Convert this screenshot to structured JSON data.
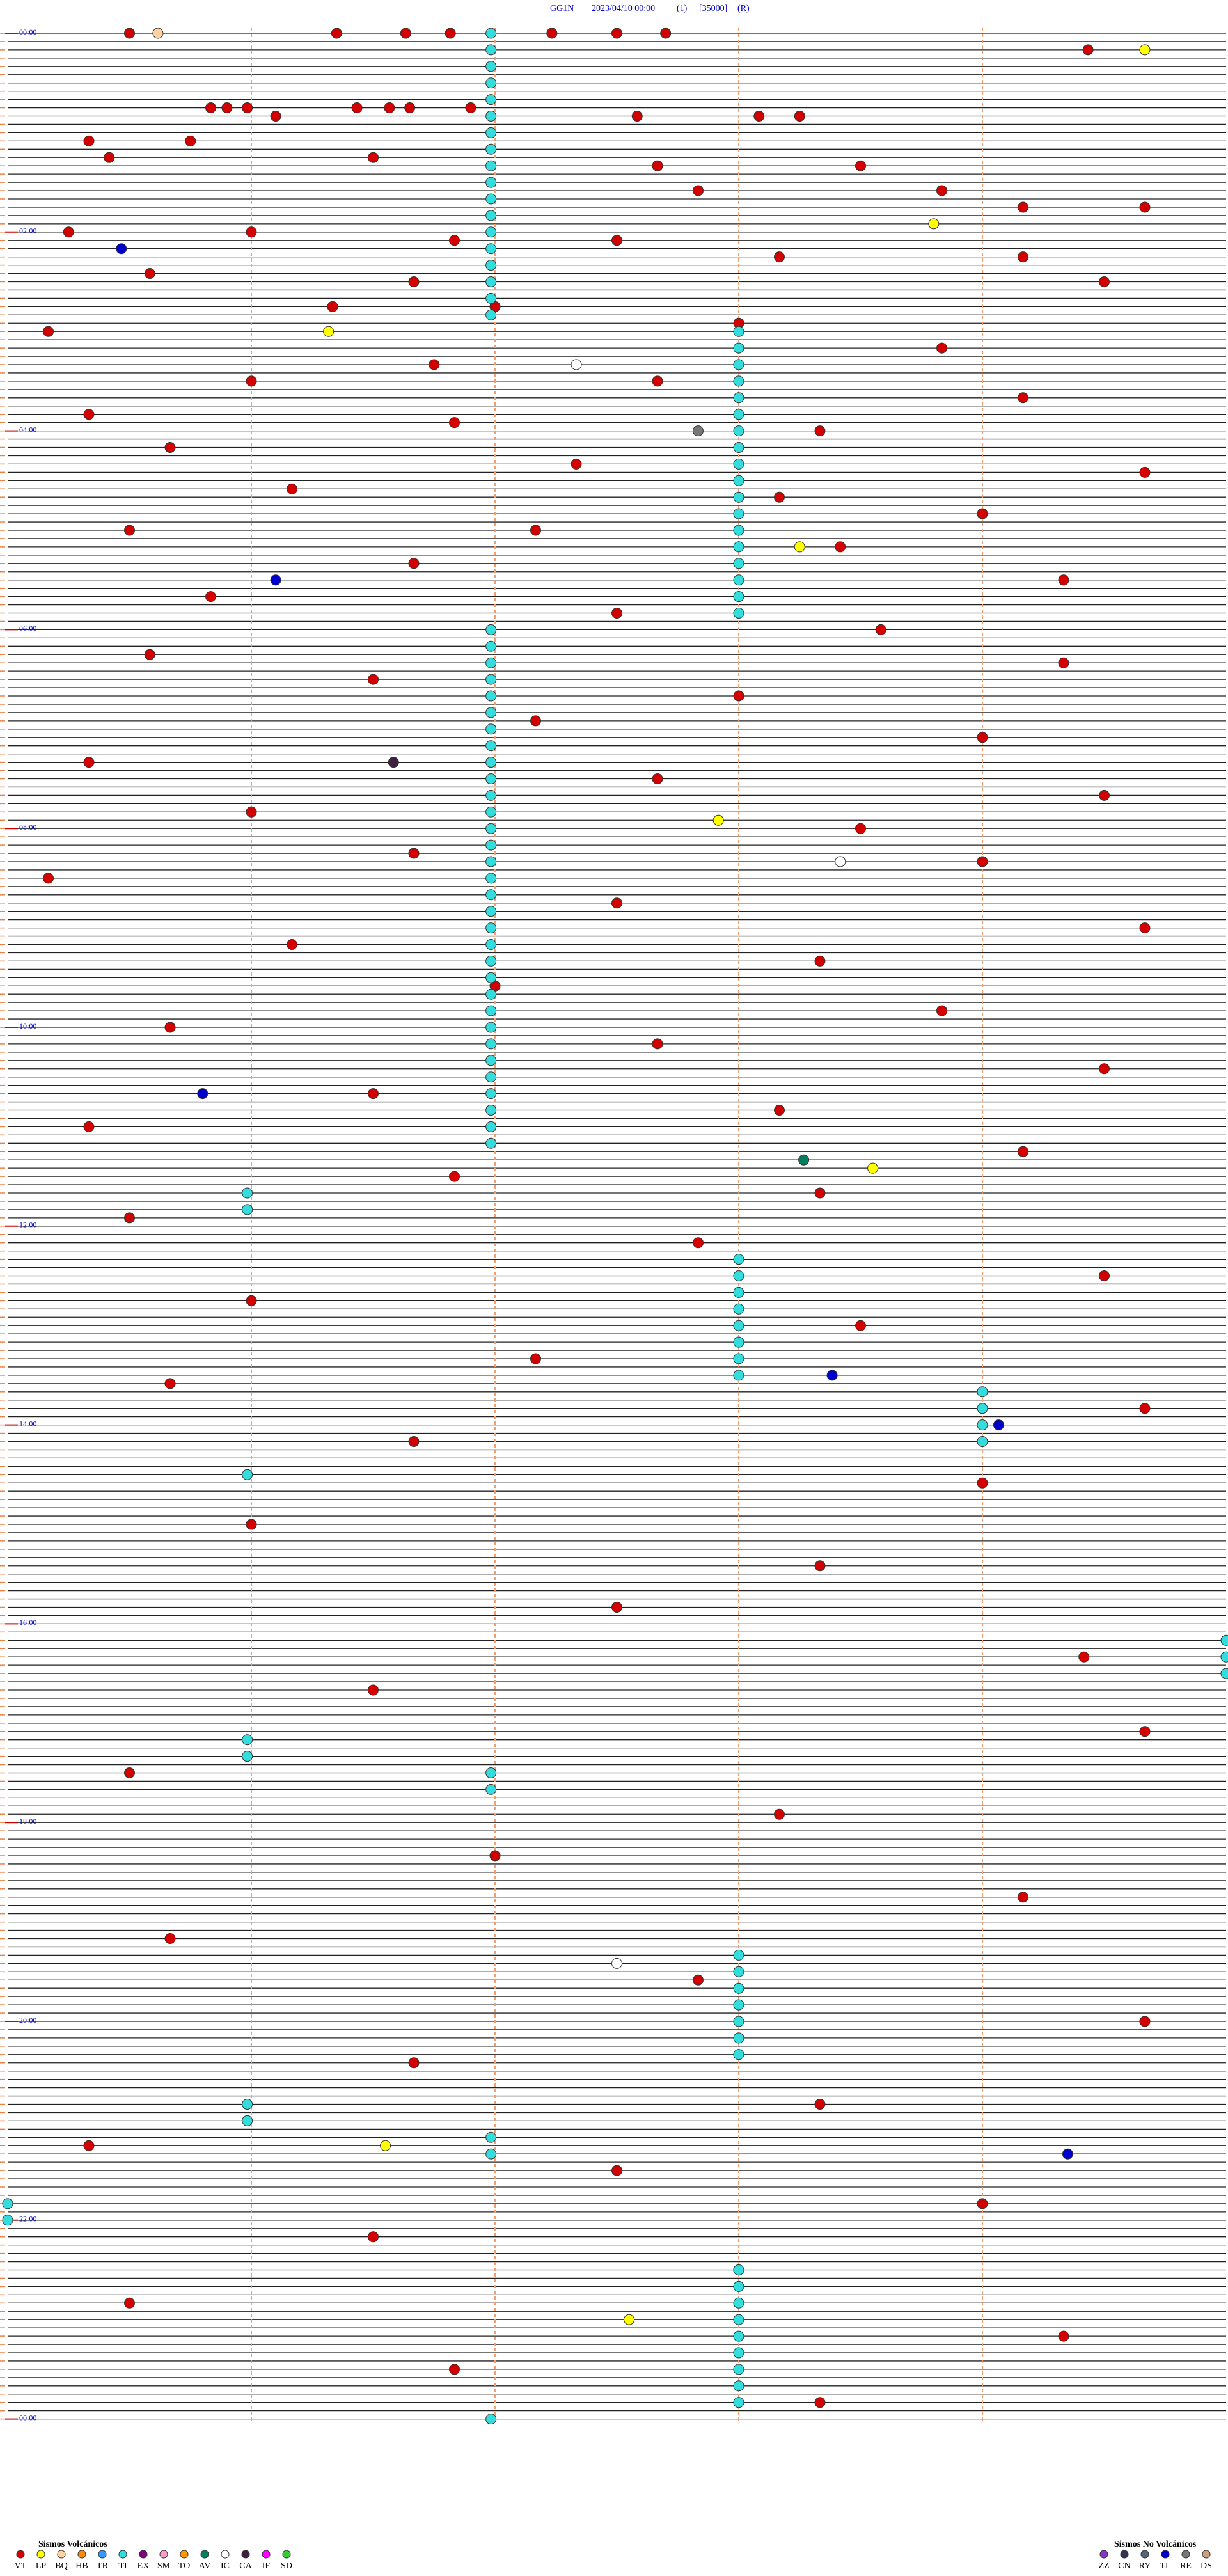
{
  "header": {
    "station": "GG1N",
    "datetime": "2023/04/10 00:00",
    "channel": "(1)",
    "scale": "[35000]",
    "mode": "(R)"
  },
  "hour_labels": [
    "00:00",
    "02:00",
    "04:00",
    "06:00",
    "08:00",
    "10:00",
    "12:00",
    "14:00",
    "16:00",
    "18:00",
    "20:00",
    "22:00",
    "00:00"
  ],
  "legend_volcanic": {
    "title": "Sismos Volcánicos",
    "types": [
      {
        "name": "VT",
        "color": "#d40000"
      },
      {
        "name": "LP",
        "color": "#ffff00"
      },
      {
        "name": "BQ",
        "color": "#ffd2a0"
      },
      {
        "name": "HB",
        "color": "#ff8c00"
      },
      {
        "name": "TR",
        "color": "#3399ff"
      },
      {
        "name": "TI",
        "color": "#33dddd"
      },
      {
        "name": "EX",
        "color": "#800080"
      },
      {
        "name": "SM",
        "color": "#ff99cc"
      },
      {
        "name": "TO",
        "color": "#ff9900"
      },
      {
        "name": "AV",
        "color": "#008060"
      },
      {
        "name": "IC",
        "color": "#ffffff"
      },
      {
        "name": "CA",
        "color": "#402040"
      },
      {
        "name": "IF",
        "color": "#ff00ff"
      },
      {
        "name": "SD",
        "color": "#33cc33"
      }
    ]
  },
  "legend_nonvolcanic": {
    "title": "Sismos No Volcánicos",
    "types": [
      {
        "name": "ZZ",
        "color": "#8833cc"
      },
      {
        "name": "CN",
        "color": "#333355"
      },
      {
        "name": "RY",
        "color": "#556677"
      },
      {
        "name": "TL",
        "color": "#0000cc"
      },
      {
        "name": "RE",
        "color": "#777777"
      },
      {
        "name": "DS",
        "color": "#c8a080"
      }
    ]
  },
  "events": [
    [
      0,
      30,
      "VT"
    ],
    [
      0,
      81,
      "VT"
    ],
    [
      0,
      98,
      "VT"
    ],
    [
      0,
      109,
      "VT"
    ],
    [
      0,
      134,
      "VT"
    ],
    [
      0,
      150,
      "VT"
    ],
    [
      0,
      162,
      "VT"
    ],
    [
      2,
      266,
      "VT"
    ],
    [
      0,
      37,
      "BQ"
    ],
    [
      2,
      280,
      "LP"
    ],
    [
      9,
      50,
      "VT"
    ],
    [
      9,
      54,
      "VT"
    ],
    [
      9,
      59,
      "VT"
    ],
    [
      10,
      66,
      "VT"
    ],
    [
      9,
      86,
      "VT"
    ],
    [
      9,
      94,
      "VT"
    ],
    [
      9,
      99,
      "VT"
    ],
    [
      9,
      114,
      "VT"
    ],
    [
      10,
      155,
      "VT"
    ],
    [
      10,
      185,
      "VT"
    ],
    [
      10,
      195,
      "VT"
    ],
    [
      13,
      20,
      "VT"
    ],
    [
      13,
      45,
      "VT"
    ],
    [
      15,
      25,
      "VT"
    ],
    [
      15,
      90,
      "VT"
    ],
    [
      16,
      160,
      "VT"
    ],
    [
      16,
      210,
      "VT"
    ],
    [
      19,
      170,
      "VT"
    ],
    [
      19,
      230,
      "VT"
    ],
    [
      21,
      250,
      "VT"
    ],
    [
      21,
      280,
      "VT"
    ],
    [
      24,
      15,
      "VT"
    ],
    [
      24,
      60,
      "VT"
    ],
    [
      25,
      110,
      "VT"
    ],
    [
      25,
      150,
      "VT"
    ],
    [
      27,
      190,
      "VT"
    ],
    [
      27,
      250,
      "VT"
    ],
    [
      26,
      28,
      "TL"
    ],
    [
      23,
      228,
      "LP"
    ],
    [
      29,
      35,
      "VT"
    ],
    [
      30,
      100,
      "VT"
    ],
    [
      30,
      270,
      "VT"
    ],
    [
      33,
      80,
      "VT"
    ],
    [
      33,
      120,
      "VT"
    ],
    [
      35,
      180,
      "VT"
    ],
    [
      36,
      10,
      "VT"
    ],
    [
      36,
      79,
      "LP"
    ],
    [
      38,
      230,
      "VT"
    ],
    [
      40,
      105,
      "VT"
    ],
    [
      40,
      140,
      "IC"
    ],
    [
      42,
      60,
      "VT"
    ],
    [
      42,
      160,
      "VT"
    ],
    [
      44,
      250,
      "VT"
    ],
    [
      46,
      20,
      "VT"
    ],
    [
      47,
      110,
      "VT"
    ],
    [
      48,
      200,
      "VT"
    ],
    [
      48,
      170,
      "RE"
    ],
    [
      50,
      40,
      "VT"
    ],
    [
      52,
      140,
      "VT"
    ],
    [
      53,
      280,
      "VT"
    ],
    [
      55,
      70,
      "VT"
    ],
    [
      56,
      190,
      "VT"
    ],
    [
      58,
      240,
      "VT"
    ],
    [
      60,
      30,
      "VT"
    ],
    [
      60,
      130,
      "VT"
    ],
    [
      62,
      205,
      "VT"
    ],
    [
      62,
      195,
      "LP"
    ],
    [
      64,
      100,
      "VT"
    ],
    [
      66,
      260,
      "VT"
    ],
    [
      66,
      66,
      "TL"
    ],
    [
      68,
      50,
      "VT"
    ],
    [
      70,
      150,
      "VT"
    ],
    [
      72,
      215,
      "VT"
    ],
    [
      75,
      35,
      "VT"
    ],
    [
      76,
      260,
      "VT"
    ],
    [
      78,
      90,
      "VT"
    ],
    [
      80,
      180,
      "VT"
    ],
    [
      83,
      130,
      "VT"
    ],
    [
      85,
      240,
      "VT"
    ],
    [
      88,
      20,
      "VT"
    ],
    [
      88,
      95,
      "CA"
    ],
    [
      90,
      160,
      "VT"
    ],
    [
      92,
      270,
      "VT"
    ],
    [
      94,
      60,
      "VT"
    ],
    [
      95,
      175,
      "LP"
    ],
    [
      96,
      210,
      "VT"
    ],
    [
      99,
      100,
      "VT"
    ],
    [
      100,
      240,
      "VT"
    ],
    [
      100,
      205,
      "IC"
    ],
    [
      102,
      10,
      "VT"
    ],
    [
      105,
      150,
      "VT"
    ],
    [
      108,
      280,
      "VT"
    ],
    [
      110,
      70,
      "VT"
    ],
    [
      112,
      200,
      "VT"
    ],
    [
      115,
      120,
      "VT"
    ],
    [
      118,
      230,
      "VT"
    ],
    [
      120,
      40,
      "VT"
    ],
    [
      122,
      160,
      "VT"
    ],
    [
      125,
      270,
      "VT"
    ],
    [
      128,
      90,
      "VT"
    ],
    [
      128,
      48,
      "TL"
    ],
    [
      130,
      190,
      "VT"
    ],
    [
      132,
      20,
      "VT"
    ],
    [
      135,
      250,
      "VT"
    ],
    [
      136,
      196,
      "AV"
    ],
    [
      137,
      213,
      "LP"
    ],
    [
      138,
      110,
      "VT"
    ],
    [
      140,
      200,
      "VT"
    ],
    [
      143,
      30,
      "VT"
    ],
    [
      146,
      170,
      "VT"
    ],
    [
      150,
      270,
      "VT"
    ],
    [
      153,
      60,
      "VT"
    ],
    [
      156,
      210,
      "VT"
    ],
    [
      160,
      130,
      "VT"
    ],
    [
      162,
      203,
      "TL"
    ],
    [
      163,
      40,
      "VT"
    ],
    [
      166,
      280,
      "VT"
    ],
    [
      168,
      244,
      "TL"
    ],
    [
      170,
      100,
      "VT"
    ],
    [
      175,
      240,
      "VT"
    ],
    [
      180,
      60,
      "VT"
    ],
    [
      185,
      200,
      "VT"
    ],
    [
      190,
      150,
      "VT"
    ],
    [
      196,
      265,
      "VT"
    ],
    [
      200,
      90,
      "VT"
    ],
    [
      205,
      280,
      "VT"
    ],
    [
      210,
      30,
      "VT"
    ],
    [
      215,
      190,
      "VT"
    ],
    [
      220,
      120,
      "VT"
    ],
    [
      225,
      250,
      "VT"
    ],
    [
      230,
      40,
      "VT"
    ],
    [
      233,
      150,
      "IC"
    ],
    [
      235,
      170,
      "VT"
    ],
    [
      240,
      280,
      "VT"
    ],
    [
      245,
      100,
      "VT"
    ],
    [
      250,
      200,
      "VT"
    ],
    [
      255,
      20,
      "VT"
    ],
    [
      255,
      93,
      "LP"
    ],
    [
      256,
      261,
      "TL"
    ],
    [
      258,
      150,
      "VT"
    ],
    [
      262,
      240,
      "VT"
    ],
    [
      266,
      90,
      "VT"
    ],
    [
      270,
      180,
      "VT"
    ],
    [
      274,
      30,
      "VT"
    ],
    [
      276,
      153,
      "LP"
    ],
    [
      278,
      260,
      "VT"
    ],
    [
      282,
      110,
      "VT"
    ],
    [
      286,
      200,
      "VT"
    ],
    [
      0,
      119,
      "TI"
    ],
    [
      2,
      119,
      "TI"
    ],
    [
      4,
      119,
      "TI"
    ],
    [
      6,
      119,
      "TI"
    ],
    [
      8,
      119,
      "TI"
    ],
    [
      10,
      119,
      "TI"
    ],
    [
      12,
      119,
      "TI"
    ],
    [
      14,
      119,
      "TI"
    ],
    [
      16,
      119,
      "TI"
    ],
    [
      18,
      119,
      "TI"
    ],
    [
      20,
      119,
      "TI"
    ],
    [
      22,
      119,
      "TI"
    ],
    [
      24,
      119,
      "TI"
    ],
    [
      26,
      119,
      "TI"
    ],
    [
      28,
      119,
      "TI"
    ],
    [
      30,
      119,
      "TI"
    ],
    [
      32,
      119,
      "TI"
    ],
    [
      34,
      119,
      "TI"
    ],
    [
      36,
      180,
      "TI"
    ],
    [
      38,
      180,
      "TI"
    ],
    [
      40,
      180,
      "TI"
    ],
    [
      42,
      180,
      "TI"
    ],
    [
      44,
      180,
      "TI"
    ],
    [
      46,
      180,
      "TI"
    ],
    [
      48,
      180,
      "TI"
    ],
    [
      50,
      180,
      "TI"
    ],
    [
      52,
      180,
      "TI"
    ],
    [
      54,
      180,
      "TI"
    ],
    [
      56,
      180,
      "TI"
    ],
    [
      58,
      180,
      "TI"
    ],
    [
      60,
      180,
      "TI"
    ],
    [
      62,
      180,
      "TI"
    ],
    [
      64,
      180,
      "TI"
    ],
    [
      66,
      180,
      "TI"
    ],
    [
      68,
      180,
      "TI"
    ],
    [
      70,
      180,
      "TI"
    ],
    [
      72,
      119,
      "TI"
    ],
    [
      74,
      119,
      "TI"
    ],
    [
      76,
      119,
      "TI"
    ],
    [
      78,
      119,
      "TI"
    ],
    [
      80,
      119,
      "TI"
    ],
    [
      82,
      119,
      "TI"
    ],
    [
      84,
      119,
      "TI"
    ],
    [
      86,
      119,
      "TI"
    ],
    [
      88,
      119,
      "TI"
    ],
    [
      90,
      119,
      "TI"
    ],
    [
      92,
      119,
      "TI"
    ],
    [
      94,
      119,
      "TI"
    ],
    [
      96,
      119,
      "TI"
    ],
    [
      98,
      119,
      "TI"
    ],
    [
      100,
      119,
      "TI"
    ],
    [
      102,
      119,
      "TI"
    ],
    [
      104,
      119,
      "TI"
    ],
    [
      106,
      119,
      "TI"
    ],
    [
      108,
      119,
      "TI"
    ],
    [
      110,
      119,
      "TI"
    ],
    [
      112,
      119,
      "TI"
    ],
    [
      114,
      119,
      "TI"
    ],
    [
      116,
      119,
      "TI"
    ],
    [
      118,
      119,
      "TI"
    ],
    [
      120,
      119,
      "TI"
    ],
    [
      122,
      119,
      "TI"
    ],
    [
      124,
      119,
      "TI"
    ],
    [
      126,
      119,
      "TI"
    ],
    [
      128,
      119,
      "TI"
    ],
    [
      130,
      119,
      "TI"
    ],
    [
      132,
      119,
      "TI"
    ],
    [
      134,
      119,
      "TI"
    ],
    [
      140,
      59,
      "TI"
    ],
    [
      142,
      59,
      "TI"
    ],
    [
      148,
      180,
      "TI"
    ],
    [
      150,
      180,
      "TI"
    ],
    [
      152,
      180,
      "TI"
    ],
    [
      154,
      180,
      "TI"
    ],
    [
      156,
      180,
      "TI"
    ],
    [
      158,
      180,
      "TI"
    ],
    [
      160,
      180,
      "TI"
    ],
    [
      162,
      180,
      "TI"
    ],
    [
      164,
      240,
      "TI"
    ],
    [
      166,
      240,
      "TI"
    ],
    [
      168,
      240,
      "TI"
    ],
    [
      170,
      240,
      "TI"
    ],
    [
      174,
      59,
      "TI"
    ],
    [
      194,
      300,
      "TI"
    ],
    [
      196,
      300,
      "TI"
    ],
    [
      198,
      300,
      "TI"
    ],
    [
      206,
      59,
      "TI"
    ],
    [
      208,
      59,
      "TI"
    ],
    [
      210,
      119,
      "TI"
    ],
    [
      212,
      119,
      "TI"
    ],
    [
      232,
      180,
      "TI"
    ],
    [
      234,
      180,
      "TI"
    ],
    [
      236,
      180,
      "TI"
    ],
    [
      238,
      180,
      "TI"
    ],
    [
      240,
      180,
      "TI"
    ],
    [
      242,
      180,
      "TI"
    ],
    [
      244,
      180,
      "TI"
    ],
    [
      250,
      59,
      "TI"
    ],
    [
      252,
      59,
      "TI"
    ],
    [
      254,
      119,
      "TI"
    ],
    [
      256,
      119,
      "TI"
    ],
    [
      262,
      0,
      "TI"
    ],
    [
      264,
      0,
      "TI"
    ],
    [
      270,
      180,
      "TI"
    ],
    [
      272,
      180,
      "TI"
    ],
    [
      274,
      180,
      "TI"
    ],
    [
      276,
      180,
      "TI"
    ],
    [
      278,
      180,
      "TI"
    ],
    [
      280,
      180,
      "TI"
    ],
    [
      282,
      180,
      "TI"
    ],
    [
      284,
      180,
      "TI"
    ],
    [
      286,
      180,
      "TI"
    ],
    [
      288,
      119,
      "TI"
    ]
  ]
}
